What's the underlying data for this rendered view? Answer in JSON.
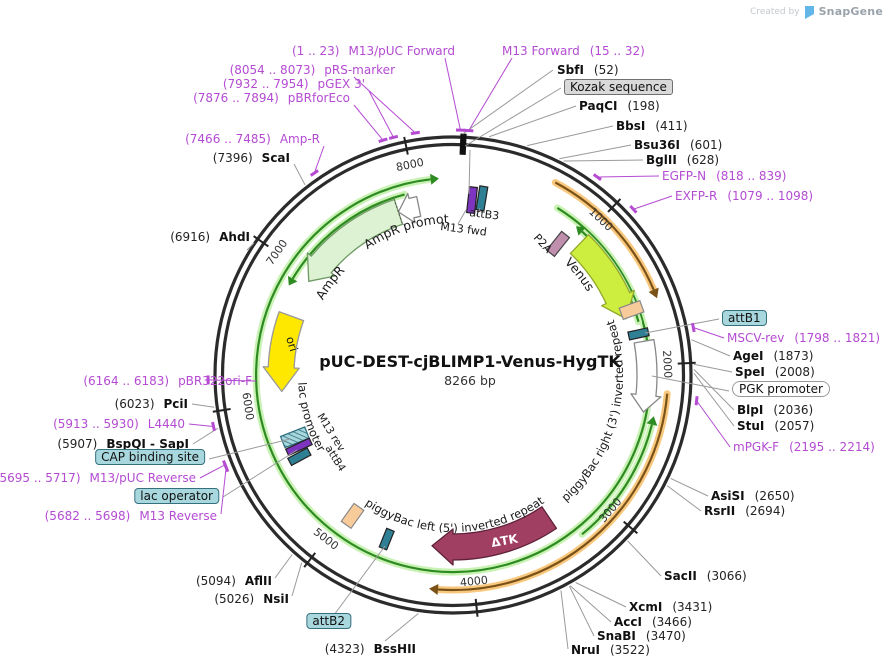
{
  "watermark": {
    "created_by": "Created by",
    "brand": "SnapGene"
  },
  "plasmid": {
    "name": "pUC-DEST-cjBLIMP1-Venus-HygTK",
    "size_label": "8266 bp"
  },
  "tick_labels": [
    "1000",
    "2000",
    "3000",
    "4000",
    "5000",
    "6000",
    "7000",
    "8000"
  ],
  "inner_features": {
    "ampr": "AmpR",
    "ampr_promoter": "AmpR promoter",
    "ori": "ori",
    "lac_promoter": "lac promoter",
    "m13_rev": "M13 rev",
    "attb4": "attB4",
    "m13_fwd": "M13 fwd",
    "attb3": "attB3",
    "p2a": "P2A",
    "venus": "Venus",
    "dtk": "ΔTK",
    "piggybac_right": "piggyBac right (3') inverted repeat",
    "piggybac_left": "piggyBac left (5') inverted repeat"
  },
  "callouts": [
    {
      "kind": "primer",
      "prefix": "(1 .. 23)",
      "name": "M13/pUC Forward"
    },
    {
      "kind": "primer",
      "name": "M13 Forward",
      "suffix": "(15 .. 32)"
    },
    {
      "kind": "primer",
      "prefix": "(8054 .. 8073)",
      "name": "pRS-marker"
    },
    {
      "kind": "primer",
      "prefix": "(7932 .. 7954)",
      "name": "pGEX 3'"
    },
    {
      "kind": "primer",
      "prefix": "(7876 .. 7894)",
      "name": "pBRforEco"
    },
    {
      "kind": "primer",
      "prefix": "(7466 .. 7485)",
      "name": "Amp-R"
    },
    {
      "kind": "enzyme",
      "prefix": "(7396)",
      "name": "ScaI"
    },
    {
      "kind": "enzyme",
      "prefix": "(6916)",
      "name": "AhdI"
    },
    {
      "kind": "primer",
      "prefix": "(6164 .. 6183)",
      "name": "pBR322ori-F"
    },
    {
      "kind": "enzyme",
      "prefix": "(6023)",
      "name": "PciI"
    },
    {
      "kind": "primer",
      "prefix": "(5913 .. 5930)",
      "name": "L4440"
    },
    {
      "kind": "enzyme",
      "prefix": "(5907)",
      "name": "BspQI  - SapI"
    },
    {
      "kind": "box",
      "name": "CAP binding site"
    },
    {
      "kind": "primer",
      "prefix": "(5695 .. 5717)",
      "name": "M13/pUC Reverse"
    },
    {
      "kind": "box",
      "name": "lac operator"
    },
    {
      "kind": "primer",
      "prefix": "(5682 .. 5698)",
      "name": "M13 Reverse"
    },
    {
      "kind": "enzyme",
      "prefix": "(5094)",
      "name": "AflII"
    },
    {
      "kind": "enzyme",
      "prefix": "(5026)",
      "name": "NsiI"
    },
    {
      "kind": "box",
      "name": "attB2"
    },
    {
      "kind": "enzyme",
      "prefix": "(4323)",
      "name": "BssHII"
    },
    {
      "kind": "enzyme",
      "name": "SbfI",
      "suffix": "(52)"
    },
    {
      "kind": "box-gray",
      "name": "Kozak sequence"
    },
    {
      "kind": "enzyme",
      "name": "PaqCI",
      "suffix": "(198)"
    },
    {
      "kind": "enzyme",
      "name": "BbsI",
      "suffix": "(411)"
    },
    {
      "kind": "enzyme",
      "name": "Bsu36I",
      "suffix": "(601)"
    },
    {
      "kind": "enzyme",
      "name": "BglII",
      "suffix": "(628)"
    },
    {
      "kind": "primer",
      "name": "EGFP-N",
      "suffix": "(818 .. 839)"
    },
    {
      "kind": "primer",
      "name": "EXFP-R",
      "suffix": "(1079 .. 1098)"
    },
    {
      "kind": "box",
      "name": "attB1"
    },
    {
      "kind": "primer",
      "name": "MSCV-rev",
      "suffix": "(1798 .. 1821)"
    },
    {
      "kind": "enzyme",
      "name": "AgeI",
      "suffix": "(1873)"
    },
    {
      "kind": "enzyme",
      "name": "SpeI",
      "suffix": "(2008)"
    },
    {
      "kind": "box-white",
      "name": "PGK promoter"
    },
    {
      "kind": "enzyme",
      "name": "BlpI",
      "suffix": "(2036)"
    },
    {
      "kind": "enzyme",
      "name": "StuI",
      "suffix": "(2057)"
    },
    {
      "kind": "primer",
      "name": "mPGK-F",
      "suffix": "(2195 .. 2214)"
    },
    {
      "kind": "enzyme",
      "name": "AsiSI",
      "suffix": "(2650)"
    },
    {
      "kind": "enzyme",
      "name": "RsrII",
      "suffix": "(2694)"
    },
    {
      "kind": "enzyme",
      "name": "SacII",
      "suffix": "(3066)"
    },
    {
      "kind": "enzyme",
      "name": "XcmI",
      "suffix": "(3431)"
    },
    {
      "kind": "enzyme",
      "name": "AccI",
      "suffix": "(3466)"
    },
    {
      "kind": "enzyme",
      "name": "SnaBI",
      "suffix": "(3470)"
    },
    {
      "kind": "enzyme",
      "name": "NruI",
      "suffix": "(3522)"
    }
  ],
  "colors": {
    "primer_text": "#b44bd2",
    "leader_gray": "#9a9a9a",
    "ring": "#2b2b2b",
    "teal_box": "#a9d7de",
    "teal_marker": "#2f7f95",
    "purple_marker": "#7d35c0",
    "ampr_fill": "#ddf2d2",
    "ampr_stroke": "#6f9a64",
    "venus_fill": "#cdee3e",
    "venus_stroke": "#93a82c",
    "ori_fill": "#ffe800",
    "ori_stroke": "#9a9a30",
    "dtk_fill": "#a13f63",
    "dtk_stroke": "#5e2138",
    "mauve_box": "#c08fae",
    "peach_box": "#f8cb9b",
    "orf_green": "#2e8b22",
    "orf_green_glow": "#c9f2b4",
    "orange_arc_core": "#7a5218",
    "orange_arc_glow": "#f9c87f",
    "kozak_marker": "#111111"
  }
}
